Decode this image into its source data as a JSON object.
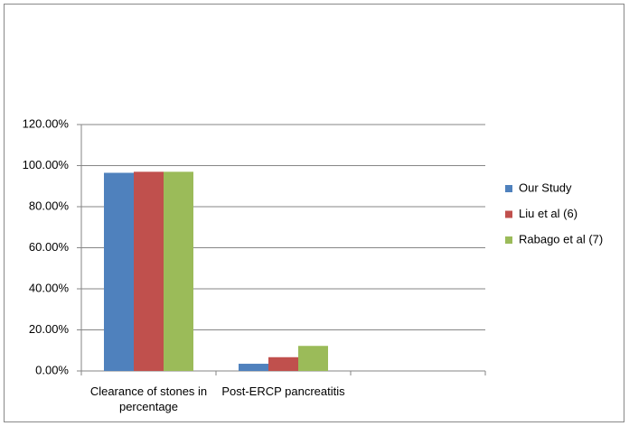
{
  "chart_data": {
    "type": "bar",
    "categories": [
      "Clearance of stones in percentage",
      "Post-ERCP pancreatitis",
      null
    ],
    "series": [
      {
        "name": "Our Study",
        "color": "#4f81bd",
        "values": [
          96.5,
          3.5,
          null
        ]
      },
      {
        "name": "Liu et al (6)",
        "color": "#c0504d",
        "values": [
          97,
          6.7,
          null
        ]
      },
      {
        "name": "Rabago et al (7)",
        "color": "#9bbb59",
        "values": [
          97,
          12.2,
          null
        ]
      }
    ],
    "ylim": [
      0,
      120
    ],
    "yticks": [
      {
        "value": 0,
        "label": "0.00%"
      },
      {
        "value": 20,
        "label": "20.00%"
      },
      {
        "value": 40,
        "label": "40.00%"
      },
      {
        "value": 60,
        "label": "60.00%"
      },
      {
        "value": 80,
        "label": "80.00%"
      },
      {
        "value": 100,
        "label": "100.00%"
      },
      {
        "value": 120,
        "label": "120.00%"
      }
    ],
    "grid": true,
    "legend": "right"
  }
}
